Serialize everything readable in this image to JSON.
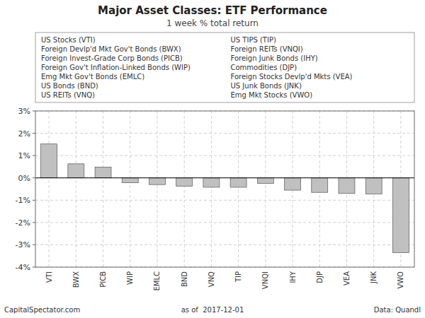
{
  "chart_data": {
    "type": "bar",
    "title": "Major Asset Classes: ETF Performance",
    "subtitle": "1 week % total return",
    "categories": [
      "VTI",
      "BWX",
      "PICB",
      "WIP",
      "EMLC",
      "BND",
      "VNQ",
      "TIP",
      "VNQI",
      "IHY",
      "DJP",
      "VEA",
      "JNK",
      "VWO"
    ],
    "values": [
      1.52,
      0.63,
      0.48,
      -0.22,
      -0.3,
      -0.37,
      -0.42,
      -0.42,
      -0.25,
      -0.55,
      -0.65,
      -0.7,
      -0.72,
      -3.35
    ],
    "color": "#c0c0c0",
    "ylim": [
      -4,
      3
    ],
    "yticks": [
      {
        "value": -4,
        "label": "-4%"
      },
      {
        "value": -3,
        "label": "-3%"
      },
      {
        "value": -2,
        "label": "-2%"
      },
      {
        "value": -1,
        "label": "-1%"
      },
      {
        "value": 0,
        "label": "0%"
      },
      {
        "value": 1,
        "label": "1%"
      },
      {
        "value": 2,
        "label": "2%"
      },
      {
        "value": 3,
        "label": "3%"
      }
    ],
    "grid": true,
    "annotations": [
      "US Stocks (VTI)",
      "Foreign Devlp'd Mkt Gov't Bonds (BWX)",
      "Foreign Invest-Grade Corp Bonds (PICB)",
      "Foreign Gov't Inflation-Linked Bonds (WIP)",
      "Emg Mkt Gov't Bonds (EMLC)",
      "US Bonds (BND)",
      "US REITs (VNQ)",
      "US TIPS (TIP)",
      "Foreign REITs (VNQI)",
      "Foreign Junk Bonds (IHY)",
      "Commodities (DJP)",
      "Foreign Stocks Devlp'd Mkts (VEA)",
      "US Junk Bonds (JNK)",
      "Emg Mkt Stocks (VWO)"
    ],
    "footer": [
      "CapitalSpectator.com",
      "as of  2017-12-01",
      "Data: Quandl"
    ]
  }
}
